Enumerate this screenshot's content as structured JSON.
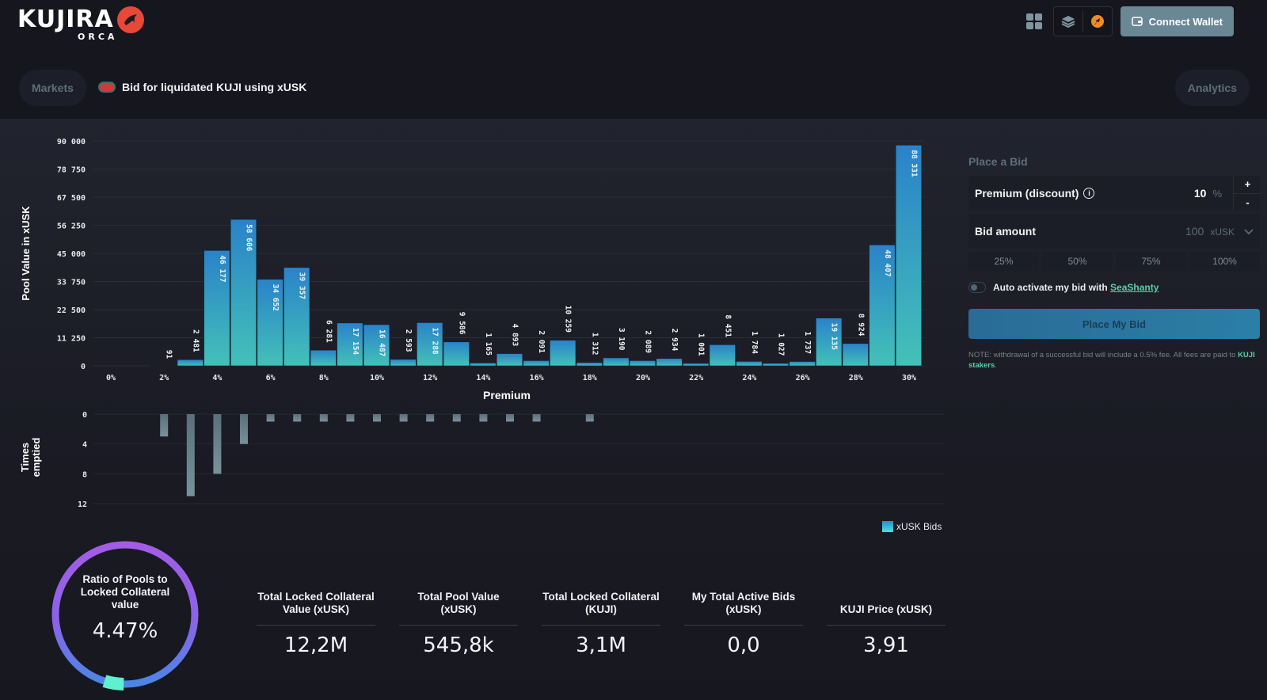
{
  "header": {
    "logo_text": "KUJIRA",
    "logo_sub": "ORCA",
    "connect_wallet_label": "Connect Wallet",
    "icons": [
      "apps-grid-icon",
      "layers-icon",
      "rocket-icon",
      "wallet-icon"
    ]
  },
  "nav": {
    "markets_label": "Markets",
    "analytics_label": "Analytics",
    "page_title": "Bid for liquidated KUJI using xUSK",
    "pair_icon_name": "kuji-xusk-pair-icon"
  },
  "bid_panel": {
    "title": "Place a Bid",
    "premium_label": "Premium (discount)",
    "premium_value": "10",
    "premium_unit": "%",
    "stepper_plus": "+",
    "stepper_minus": "-",
    "bid_amount_label": "Bid amount",
    "bid_amount_value": "100",
    "bid_amount_unit": "xUSK",
    "pct_buttons": [
      "25%",
      "50%",
      "75%",
      "100%"
    ],
    "auto_activate_text": "Auto activate my bid with",
    "auto_activate_link": "SeaShanty",
    "auto_activate_on": false,
    "place_bid_label": "Place My Bid",
    "note_text": "NOTE: withdrawal of a successful bid will include a 0.5% fee. All fees are paid to",
    "note_link": "KUJI stakers",
    "note_end": "."
  },
  "legend": {
    "label": "xUSK Bids"
  },
  "ratio": {
    "label": "Ratio of Pools to Locked Collateral value",
    "value_text": "4.47%",
    "value": 4.47
  },
  "stats": [
    {
      "label": "Total Locked Collateral Value (xUSK)",
      "value": "12,2M"
    },
    {
      "label": "Total Pool Value (xUSK)",
      "value": "545,8k"
    },
    {
      "label": "Total Locked Collateral (KUJI)",
      "value": "3,1M"
    },
    {
      "label": "My Total Active Bids (xUSK)",
      "value": "0,0"
    },
    {
      "label": "KUJI Price (xUSK)",
      "value": "3,91"
    }
  ],
  "chart_data": [
    {
      "type": "bar",
      "title": "",
      "xlabel": "Premium",
      "ylabel": "Pool Value in xUSK",
      "ylim": [
        0,
        90000
      ],
      "yticks": [
        0,
        11250,
        22500,
        33750,
        45000,
        56250,
        67500,
        78750,
        90000
      ],
      "ytick_labels": [
        "0",
        "11 250",
        "22 500",
        "33 750",
        "45 000",
        "56 250",
        "67 500",
        "78 750",
        "90 000"
      ],
      "xlim": [
        0,
        30
      ],
      "xticks": [
        0,
        2,
        4,
        6,
        8,
        10,
        12,
        14,
        16,
        18,
        20,
        22,
        24,
        26,
        28,
        30
      ],
      "xtick_labels": [
        "0%",
        "2%",
        "4%",
        "6%",
        "8%",
        "10%",
        "12%",
        "14%",
        "16%",
        "18%",
        "20%",
        "22%",
        "24%",
        "26%",
        "28%",
        "30%"
      ],
      "grid": true,
      "legend": "bottom-right",
      "series": [
        {
          "name": "xUSK Bids",
          "x": [
            2,
            3,
            4,
            5,
            6,
            7,
            8,
            9,
            10,
            11,
            12,
            13,
            14,
            15,
            16,
            17,
            18,
            19,
            20,
            21,
            22,
            23,
            24,
            25,
            26,
            27,
            28,
            29,
            30
          ],
          "values": [
            91,
            2481,
            46177,
            58606,
            34652,
            39357,
            6281,
            17154,
            16487,
            2593,
            17288,
            9586,
            1165,
            4893,
            2091,
            10259,
            1312,
            3190,
            2089,
            2934,
            1001,
            8451,
            1784,
            1027,
            1737,
            19135,
            8924,
            48407,
            88331
          ],
          "labels": [
            "91",
            "2 481",
            "46 177",
            "58 606",
            "34 652",
            "39 357",
            "6 281",
            "17 154",
            "16 487",
            "2 593",
            "17 288",
            "9 586",
            "1 165",
            "4 893",
            "2 091",
            "10 259",
            "1 312",
            "3 190",
            "2 089",
            "2 934",
            "1 001",
            "8 451",
            "1 784",
            "1 027",
            "1 737",
            "19 135",
            "8 924",
            "48 407",
            "88 331"
          ]
        }
      ]
    },
    {
      "type": "bar",
      "title": "",
      "xlabel": "",
      "ylabel": "Times emptied",
      "ylim": [
        0,
        12
      ],
      "yticks": [
        0,
        4,
        8,
        12
      ],
      "ytick_labels": [
        "0",
        "4",
        "8",
        "12"
      ],
      "inverted_y": true,
      "grid": true,
      "series": [
        {
          "name": "Times emptied",
          "x": [
            2,
            3,
            4,
            5,
            6,
            7,
            8,
            9,
            10,
            11,
            12,
            13,
            14,
            15,
            16,
            18
          ],
          "values": [
            3,
            11,
            8,
            4,
            1,
            1,
            1,
            1,
            1,
            1,
            1,
            1,
            1,
            1,
            1,
            1
          ]
        }
      ]
    }
  ]
}
